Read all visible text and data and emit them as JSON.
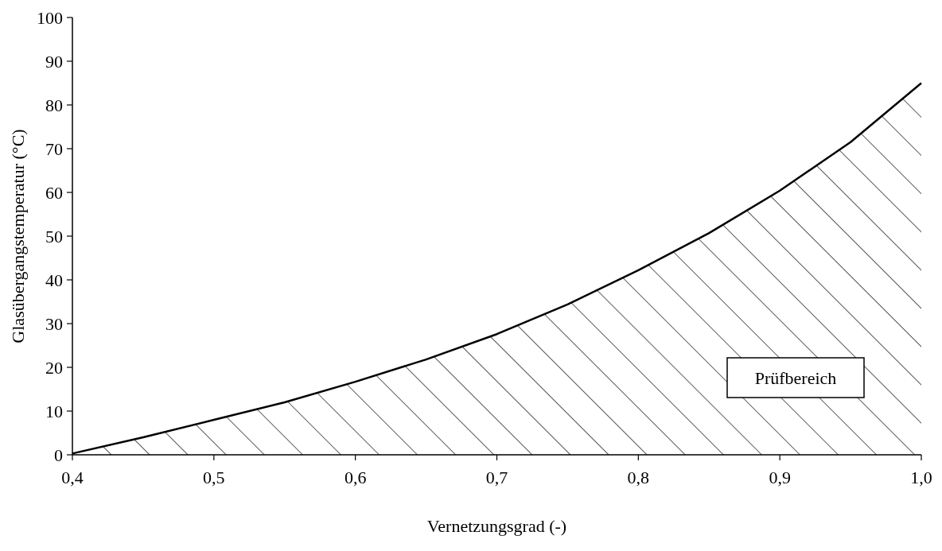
{
  "chart_data": {
    "type": "area",
    "xlabel": "Vernetzungsgrad (-)",
    "ylabel": "Glasübergangstemperatur (°C)",
    "x": [
      0.4,
      0.45,
      0.5,
      0.55,
      0.6,
      0.65,
      0.7,
      0.75,
      0.8,
      0.85,
      0.9,
      0.95,
      1.0
    ],
    "series": [
      {
        "color": "#000000",
        "values": [
          0.3,
          4,
          8,
          12,
          16.7,
          21.8,
          27.6,
          34.4,
          42.2,
          50.7,
          60.4,
          71.5,
          85
        ]
      }
    ],
    "xlim": [
      0.4,
      1.0
    ],
    "xticks": [
      {
        "value": 0.4,
        "label": "0,4"
      },
      {
        "value": 0.5,
        "label": "0,5"
      },
      {
        "value": 0.6,
        "label": "0,6"
      },
      {
        "value": 0.7,
        "label": "0,7"
      },
      {
        "value": 0.8,
        "label": "0,8"
      },
      {
        "value": 0.9,
        "label": "0,9"
      },
      {
        "value": 1.0,
        "label": "1,0"
      }
    ],
    "ylim": [
      0,
      100
    ],
    "yticks": [
      0,
      10,
      20,
      30,
      40,
      50,
      60,
      70,
      80,
      90,
      100
    ],
    "annotations": [
      "Prüfbereich"
    ]
  }
}
